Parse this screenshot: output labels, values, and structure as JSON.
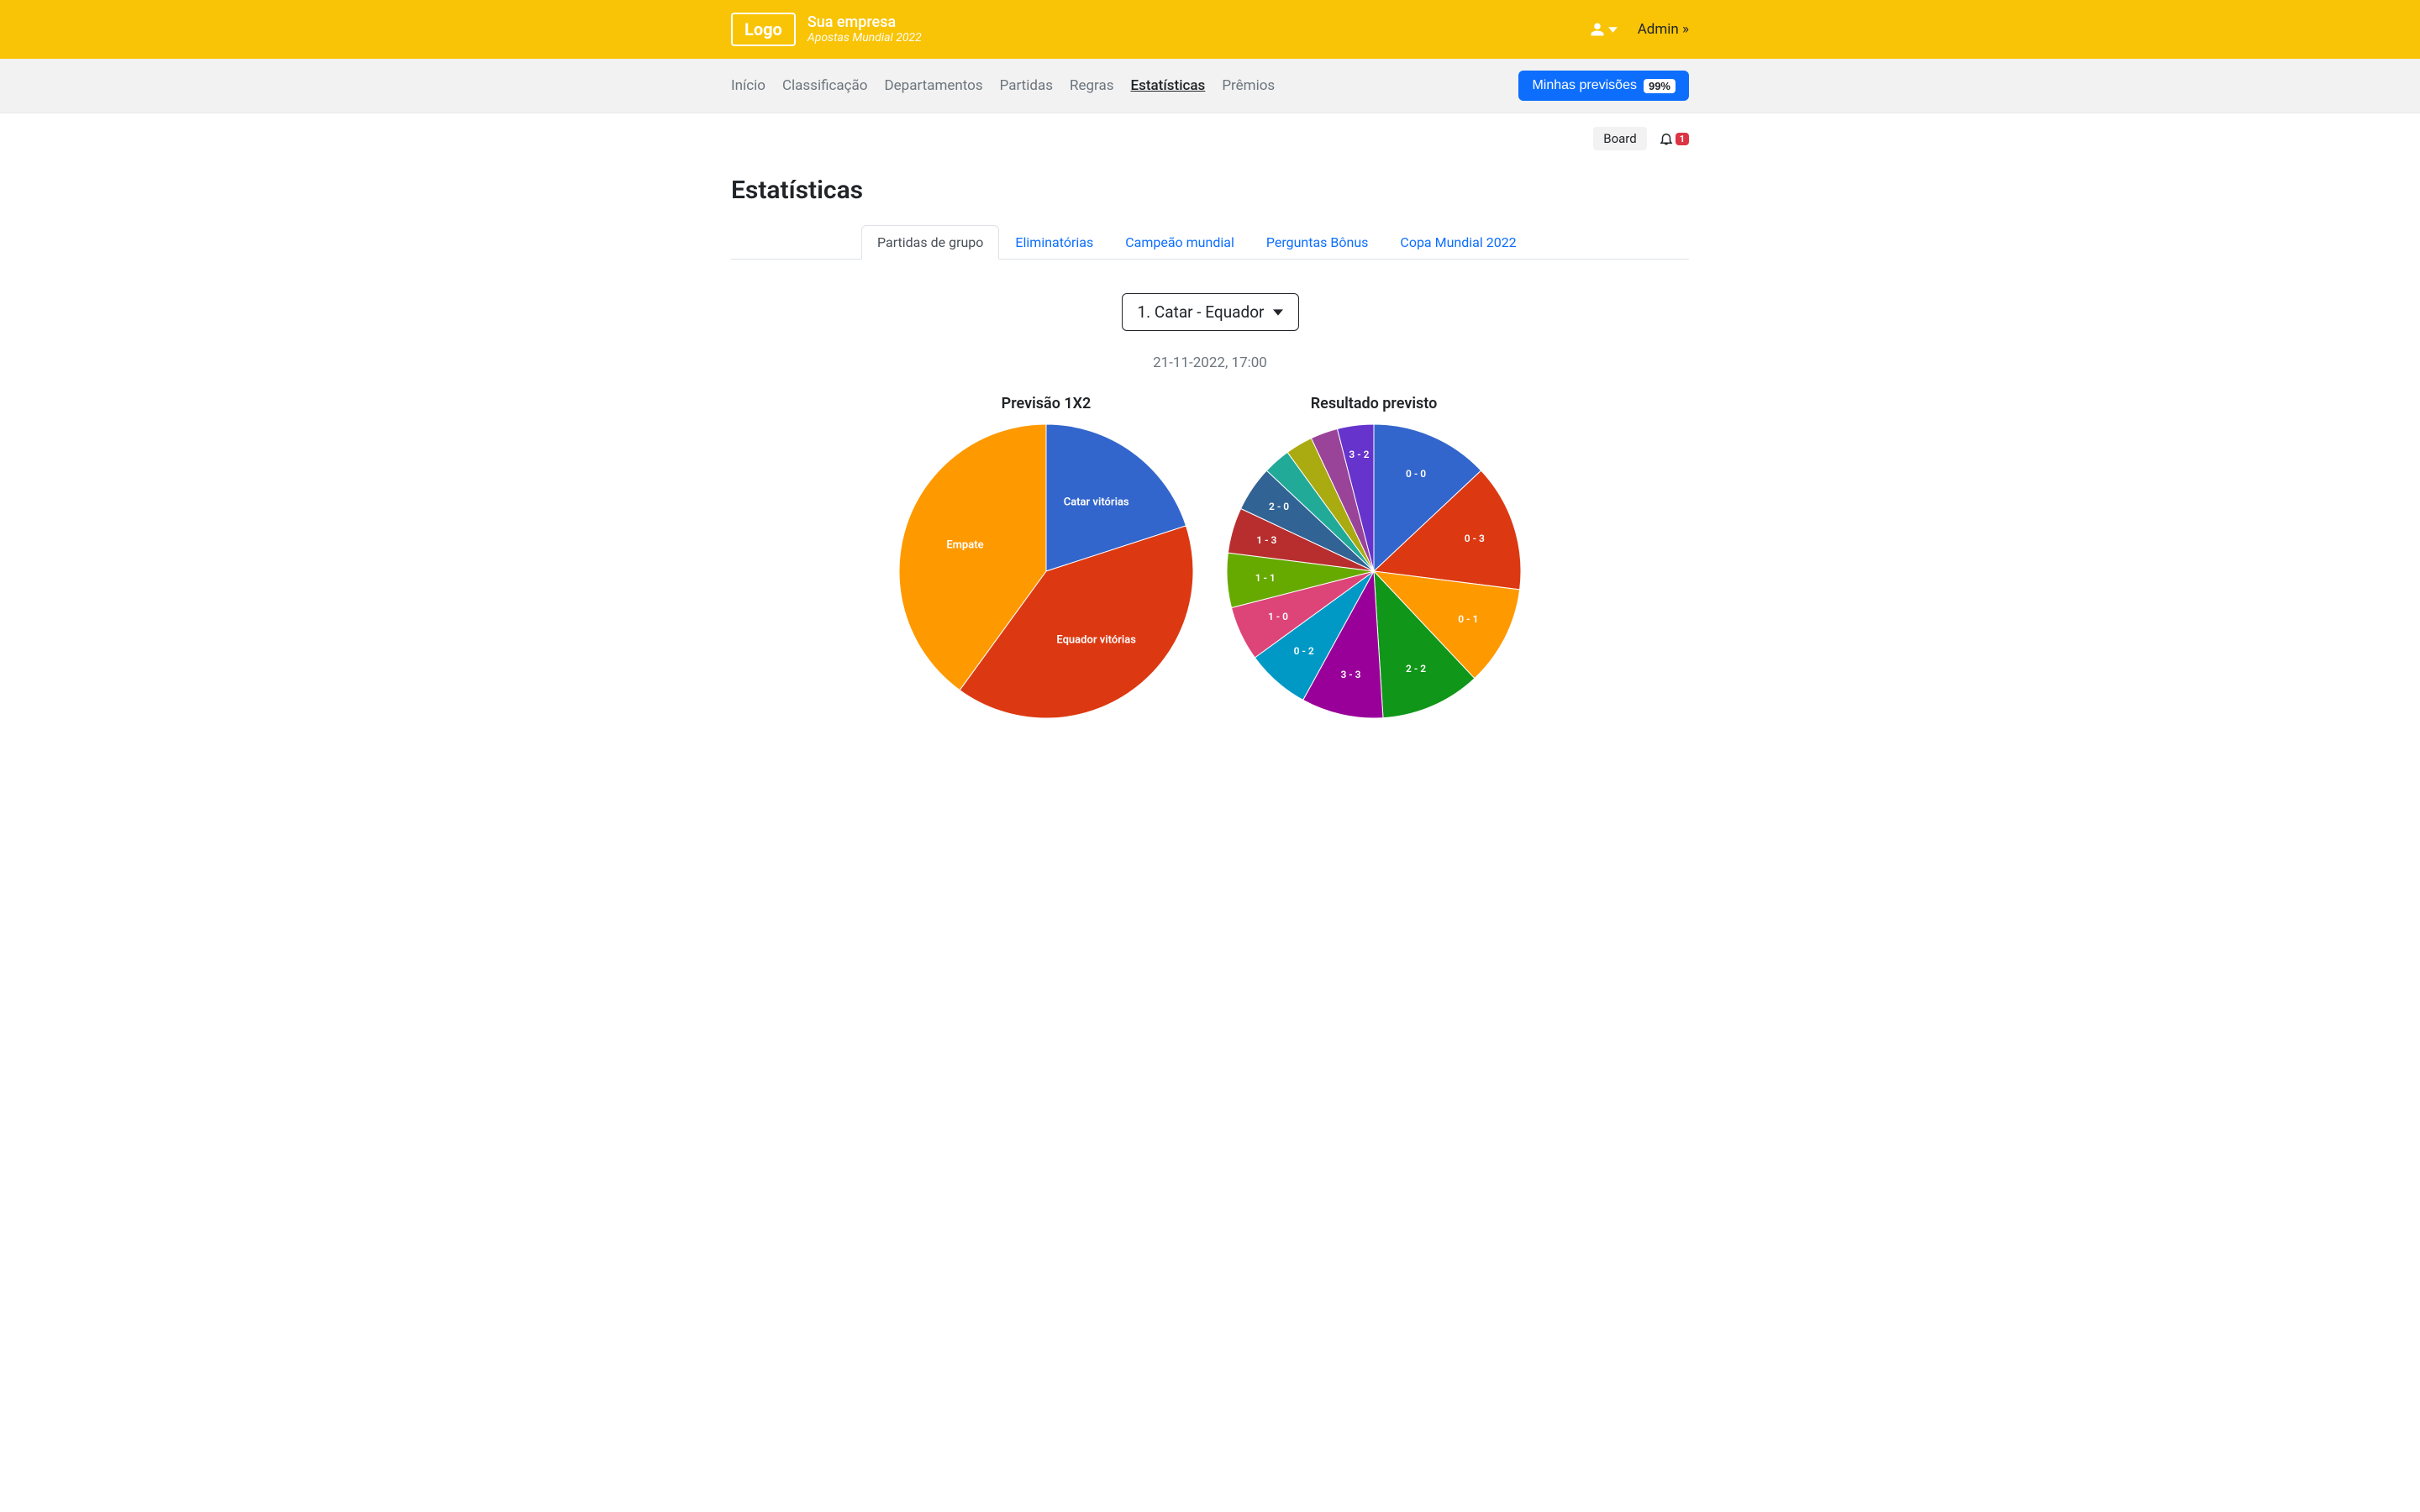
{
  "colors": {
    "topbar_bg": "#f9c405",
    "navbar_bg": "#f2f2f2",
    "primary": "#0d6efd",
    "text_muted": "#6c757d",
    "danger": "#dc3545"
  },
  "header": {
    "logo_text": "Logo",
    "company": "Sua empresa",
    "subtitle": "Apostas Mundial 2022",
    "admin_link": "Admin »"
  },
  "nav": {
    "items": [
      {
        "label": "Início",
        "active": false
      },
      {
        "label": "Classificação",
        "active": false
      },
      {
        "label": "Departamentos",
        "active": false
      },
      {
        "label": "Partidas",
        "active": false
      },
      {
        "label": "Regras",
        "active": false
      },
      {
        "label": "Estatísticas",
        "active": true
      },
      {
        "label": "Prêmios",
        "active": false
      }
    ],
    "predictions_button": "Minhas previsões",
    "predictions_badge": "99%"
  },
  "subbar": {
    "board_label": "Board",
    "bell_count": "1"
  },
  "page": {
    "title": "Estatísticas"
  },
  "tabs": [
    {
      "label": "Partidas de grupo",
      "active": true
    },
    {
      "label": "Eliminatórias",
      "active": false
    },
    {
      "label": "Campeão mundial",
      "active": false
    },
    {
      "label": "Perguntas Bônus",
      "active": false
    },
    {
      "label": "Copa Mundial 2022",
      "active": false
    }
  ],
  "match": {
    "selector_label": "1. Catar - Equador",
    "datetime": "21-11-2022, 17:00"
  },
  "chart_left": {
    "type": "pie",
    "title": "Previsão 1X2",
    "diameter": 350,
    "label_color_light": "#ffffff",
    "label_color_dark": "#212529",
    "label_fontsize": 13,
    "slices": [
      {
        "label": "Catar vitórias",
        "value": 20,
        "color": "#3366cc",
        "label_r": 0.58,
        "text_color": "#ffffff"
      },
      {
        "label": "Equador vitórias",
        "value": 40,
        "color": "#dc3912",
        "label_r": 0.58,
        "text_color": "#ffffff"
      },
      {
        "label": "Empate",
        "value": 40,
        "color": "#ff9900",
        "label_r": 0.58,
        "text_color": "#ffffff"
      }
    ]
  },
  "chart_right": {
    "type": "pie",
    "title": "Resultado previsto",
    "diameter": 350,
    "label_fontsize": 12,
    "slices": [
      {
        "label": "0 - 0",
        "value": 13,
        "color": "#3366cc",
        "label_r": 0.72,
        "text_color": "#ffffff"
      },
      {
        "label": "0 - 3",
        "value": 14,
        "color": "#dc3912",
        "label_r": 0.72,
        "text_color": "#ffffff"
      },
      {
        "label": "0 - 1",
        "value": 11,
        "color": "#ff9900",
        "label_r": 0.72,
        "text_color": "#ffffff"
      },
      {
        "label": "2 - 2",
        "value": 11,
        "color": "#109618",
        "label_r": 0.72,
        "text_color": "#ffffff"
      },
      {
        "label": "3 - 3",
        "value": 9,
        "color": "#990099",
        "label_r": 0.72,
        "text_color": "#ffffff"
      },
      {
        "label": "0 - 2",
        "value": 7,
        "color": "#0099c6",
        "label_r": 0.72,
        "text_color": "#ffffff"
      },
      {
        "label": "1 - 0",
        "value": 6,
        "color": "#dd4477",
        "label_r": 0.72,
        "text_color": "#ffffff"
      },
      {
        "label": "1 - 1",
        "value": 6,
        "color": "#66aa00",
        "label_r": 0.74,
        "text_color": "#ffffff"
      },
      {
        "label": "1 - 3",
        "value": 5,
        "color": "#b82e2e",
        "label_r": 0.76,
        "text_color": "#ffffff"
      },
      {
        "label": "2 - 0",
        "value": 5,
        "color": "#316395",
        "label_r": 0.78,
        "text_color": "#ffffff"
      },
      {
        "label": "",
        "value": 3,
        "color": "#22aa99",
        "label_r": 0.8,
        "text_color": "#ffffff"
      },
      {
        "label": "",
        "value": 3,
        "color": "#aaaa11",
        "label_r": 0.82,
        "text_color": "#ffffff"
      },
      {
        "label": "",
        "value": 3,
        "color": "#994499",
        "label_r": 0.84,
        "text_color": "#ffffff"
      },
      {
        "label": "3 - 2",
        "value": 4,
        "color": "#6633cc",
        "label_r": 0.8,
        "text_color": "#ffffff"
      }
    ]
  }
}
